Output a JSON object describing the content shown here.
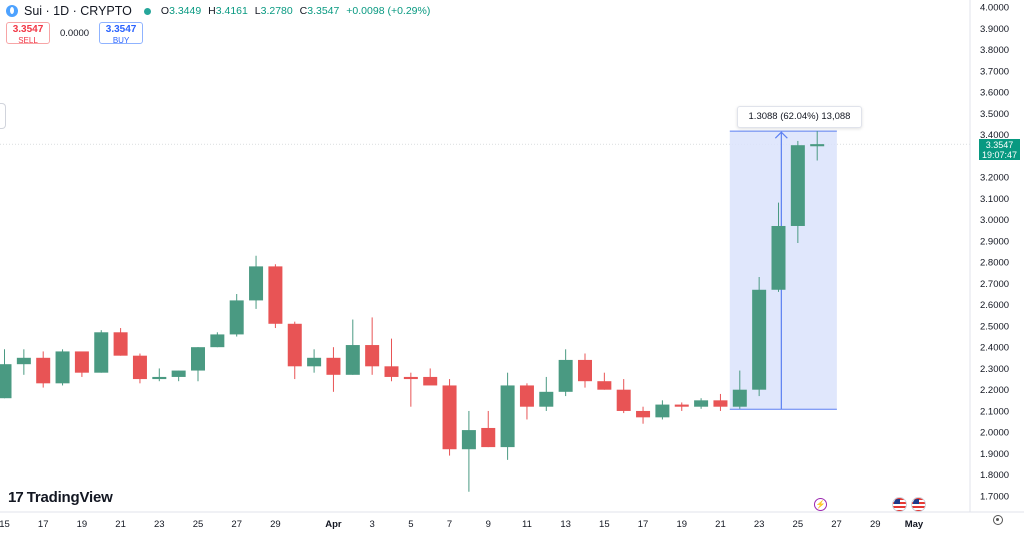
{
  "header": {
    "symbol": "Sui · 1D · CRYPTO",
    "o_label": "O",
    "o_value": "3.3449",
    "h_label": "H",
    "h_value": "3.4161",
    "l_label": "L",
    "l_value": "3.2780",
    "c_label": "C",
    "c_value": "3.3547",
    "change": "+0.0098 (+0.29%)"
  },
  "trade": {
    "sell_price": "3.3547",
    "sell_label": "SELL",
    "spread": "0.0000",
    "buy_price": "3.3547",
    "buy_label": "BUY"
  },
  "branding": {
    "name": "TradingView",
    "mark": "17"
  },
  "measure": {
    "text": "1.3088 (62.04%) 13,088"
  },
  "price_label": {
    "price": "3.3547",
    "countdown": "19:07:47"
  },
  "colors": {
    "up": "#4a9a82",
    "down": "#e85455",
    "measure_fill": "#dbe3fb",
    "measure_line": "#5b7ff2",
    "price_tag": "#089981"
  },
  "icons": {
    "event_1": "lightning-icon",
    "event_2": "us-flag-icon",
    "event_3": "us-flag-icon",
    "settings": "gear-icon"
  },
  "chart_data": {
    "type": "candlestick",
    "y_ticks": [
      "1.7000",
      "1.8000",
      "1.9000",
      "2.0000",
      "2.1000",
      "2.2000",
      "2.3000",
      "2.4000",
      "2.5000",
      "2.6000",
      "2.7000",
      "2.8000",
      "2.9000",
      "3.0000",
      "3.1000",
      "3.2000",
      "3.3000",
      "3.4000",
      "3.5000",
      "3.6000",
      "3.7000",
      "3.8000",
      "3.9000",
      "4.0000"
    ],
    "ylim": [
      1.65,
      4.02
    ],
    "x_ticks": [
      {
        "label": "15",
        "day": 15
      },
      {
        "label": "17",
        "day": 17
      },
      {
        "label": "19",
        "day": 19
      },
      {
        "label": "21",
        "day": 21
      },
      {
        "label": "23",
        "day": 23
      },
      {
        "label": "25",
        "day": 25
      },
      {
        "label": "27",
        "day": 27
      },
      {
        "label": "29",
        "day": 29
      },
      {
        "label": "Apr",
        "day": 32
      },
      {
        "label": "3",
        "day": 34
      },
      {
        "label": "5",
        "day": 36
      },
      {
        "label": "7",
        "day": 38
      },
      {
        "label": "9",
        "day": 40
      },
      {
        "label": "11",
        "day": 42
      },
      {
        "label": "13",
        "day": 44
      },
      {
        "label": "15",
        "day": 46
      },
      {
        "label": "17",
        "day": 48
      },
      {
        "label": "19",
        "day": 50
      },
      {
        "label": "21",
        "day": 52
      },
      {
        "label": "23",
        "day": 54
      },
      {
        "label": "25",
        "day": 56
      },
      {
        "label": "27",
        "day": 58
      },
      {
        "label": "29",
        "day": 60
      },
      {
        "label": "May",
        "day": 62
      }
    ],
    "candles": [
      {
        "d": 15,
        "o": 2.16,
        "h": 2.39,
        "l": 2.16,
        "c": 2.32
      },
      {
        "d": 16,
        "o": 2.32,
        "h": 2.39,
        "l": 2.27,
        "c": 2.35
      },
      {
        "d": 17,
        "o": 2.35,
        "h": 2.38,
        "l": 2.21,
        "c": 2.23
      },
      {
        "d": 18,
        "o": 2.23,
        "h": 2.39,
        "l": 2.22,
        "c": 2.38
      },
      {
        "d": 19,
        "o": 2.38,
        "h": 2.37,
        "l": 2.26,
        "c": 2.28
      },
      {
        "d": 20,
        "o": 2.28,
        "h": 2.48,
        "l": 2.28,
        "c": 2.47
      },
      {
        "d": 21,
        "o": 2.47,
        "h": 2.49,
        "l": 2.36,
        "c": 2.36
      },
      {
        "d": 22,
        "o": 2.36,
        "h": 2.37,
        "l": 2.23,
        "c": 2.25
      },
      {
        "d": 23,
        "o": 2.25,
        "h": 2.3,
        "l": 2.24,
        "c": 2.26
      },
      {
        "d": 24,
        "o": 2.26,
        "h": 2.29,
        "l": 2.24,
        "c": 2.29
      },
      {
        "d": 25,
        "o": 2.29,
        "h": 2.4,
        "l": 2.24,
        "c": 2.4
      },
      {
        "d": 26,
        "o": 2.4,
        "h": 2.47,
        "l": 2.4,
        "c": 2.46
      },
      {
        "d": 27,
        "o": 2.46,
        "h": 2.65,
        "l": 2.45,
        "c": 2.62
      },
      {
        "d": 28,
        "o": 2.62,
        "h": 2.83,
        "l": 2.58,
        "c": 2.78
      },
      {
        "d": 29,
        "o": 2.78,
        "h": 2.79,
        "l": 2.49,
        "c": 2.51
      },
      {
        "d": 30,
        "o": 2.51,
        "h": 2.52,
        "l": 2.25,
        "c": 2.31
      },
      {
        "d": 31,
        "o": 2.31,
        "h": 2.39,
        "l": 2.28,
        "c": 2.35
      },
      {
        "d": 32,
        "o": 2.35,
        "h": 2.4,
        "l": 2.19,
        "c": 2.27
      },
      {
        "d": 33,
        "o": 2.27,
        "h": 2.53,
        "l": 2.27,
        "c": 2.41
      },
      {
        "d": 34,
        "o": 2.41,
        "h": 2.54,
        "l": 2.27,
        "c": 2.31
      },
      {
        "d": 35,
        "o": 2.31,
        "h": 2.44,
        "l": 2.24,
        "c": 2.26
      },
      {
        "d": 36,
        "o": 2.26,
        "h": 2.28,
        "l": 2.12,
        "c": 2.25
      },
      {
        "d": 37,
        "o": 2.26,
        "h": 2.3,
        "l": 2.23,
        "c": 2.22
      },
      {
        "d": 38,
        "o": 2.22,
        "h": 2.25,
        "l": 1.89,
        "c": 1.92
      },
      {
        "d": 39,
        "o": 1.92,
        "h": 2.1,
        "l": 1.72,
        "c": 2.01
      },
      {
        "d": 40,
        "o": 2.02,
        "h": 2.1,
        "l": 1.93,
        "c": 1.93
      },
      {
        "d": 41,
        "o": 1.93,
        "h": 2.28,
        "l": 1.87,
        "c": 2.22
      },
      {
        "d": 42,
        "o": 2.22,
        "h": 2.23,
        "l": 2.06,
        "c": 2.12
      },
      {
        "d": 43,
        "o": 2.12,
        "h": 2.26,
        "l": 2.1,
        "c": 2.19
      },
      {
        "d": 44,
        "o": 2.19,
        "h": 2.39,
        "l": 2.17,
        "c": 2.34
      },
      {
        "d": 45,
        "o": 2.34,
        "h": 2.37,
        "l": 2.21,
        "c": 2.24
      },
      {
        "d": 46,
        "o": 2.24,
        "h": 2.28,
        "l": 2.2,
        "c": 2.2
      },
      {
        "d": 47,
        "o": 2.2,
        "h": 2.25,
        "l": 2.09,
        "c": 2.1
      },
      {
        "d": 48,
        "o": 2.1,
        "h": 2.12,
        "l": 2.04,
        "c": 2.07
      },
      {
        "d": 49,
        "o": 2.07,
        "h": 2.15,
        "l": 2.06,
        "c": 2.13
      },
      {
        "d": 50,
        "o": 2.13,
        "h": 2.14,
        "l": 2.1,
        "c": 2.12
      },
      {
        "d": 51,
        "o": 2.12,
        "h": 2.16,
        "l": 2.11,
        "c": 2.15
      },
      {
        "d": 52,
        "o": 2.15,
        "h": 2.18,
        "l": 2.1,
        "c": 2.12
      },
      {
        "d": 53,
        "o": 2.12,
        "h": 2.29,
        "l": 2.11,
        "c": 2.2
      },
      {
        "d": 54,
        "o": 2.2,
        "h": 2.73,
        "l": 2.17,
        "c": 2.67
      },
      {
        "d": 55,
        "o": 2.67,
        "h": 3.08,
        "l": 2.66,
        "c": 2.97
      },
      {
        "d": 56,
        "o": 2.97,
        "h": 3.37,
        "l": 2.89,
        "c": 3.35
      },
      {
        "d": 57,
        "o": 3.345,
        "h": 3.416,
        "l": 3.278,
        "c": 3.355
      }
    ],
    "measure_range": {
      "start_day": 53,
      "end_day": 57.5,
      "low": 2.108,
      "high": 3.416
    },
    "last_price": 3.3547
  }
}
